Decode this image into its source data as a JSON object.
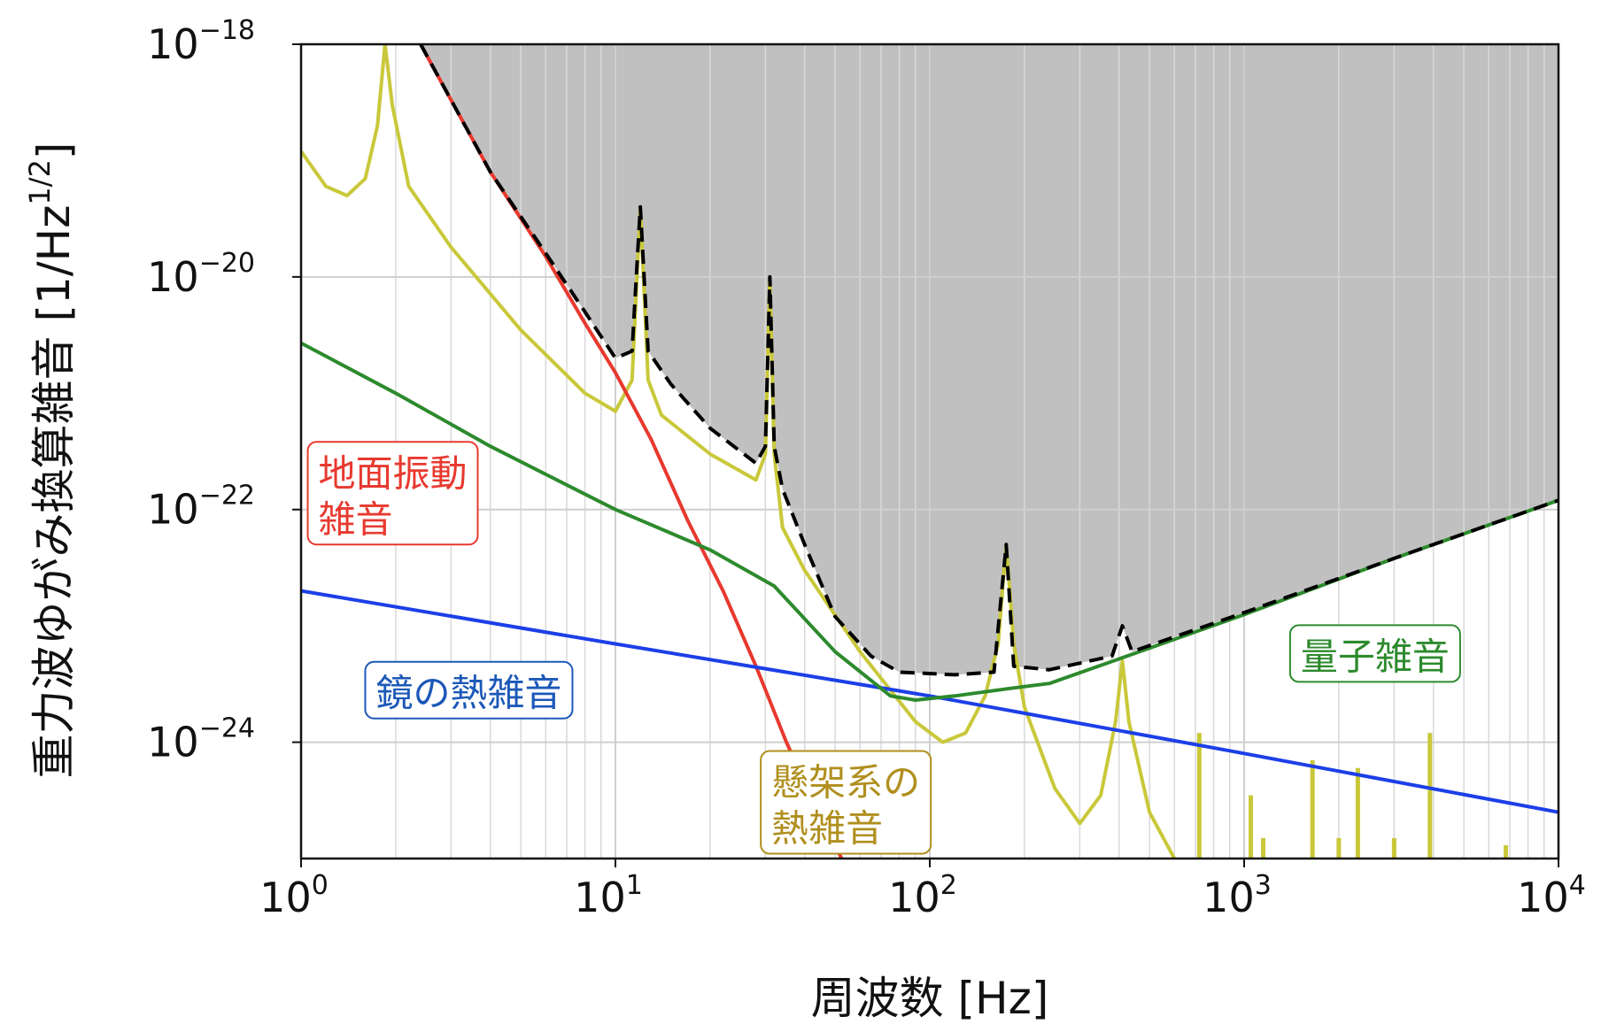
{
  "chart_data": {
    "type": "line",
    "title": "",
    "xlabel": "周波数 [Hz]",
    "ylabel": "重力波ゆがみ換算雑音 [1/Hz",
    "ylabel_sup": "1/2",
    "ylabel_tail": "]",
    "x_scale": "log",
    "y_scale": "log",
    "xlim": [
      1,
      10000
    ],
    "ylim": [
      1e-25,
      1e-18
    ],
    "grid": true,
    "x_ticks": [
      {
        "value": 1,
        "base": "10",
        "exp": "0"
      },
      {
        "value": 10,
        "base": "10",
        "exp": "1"
      },
      {
        "value": 100,
        "base": "10",
        "exp": "2"
      },
      {
        "value": 1000,
        "base": "10",
        "exp": "3"
      },
      {
        "value": 10000,
        "base": "10",
        "exp": "4"
      }
    ],
    "y_ticks": [
      {
        "value": 1e-18,
        "base": "10",
        "exp": "−18"
      },
      {
        "value": 1e-20,
        "base": "10",
        "exp": "−20"
      },
      {
        "value": 1e-22,
        "base": "10",
        "exp": "−22"
      },
      {
        "value": 1e-24,
        "base": "10",
        "exp": "−24"
      }
    ],
    "series": [
      {
        "key": "seismic",
        "name": "地面振動雑音",
        "color": "#e8392f",
        "style": "solid",
        "points": [
          [
            2.4,
            1e-18
          ],
          [
            4,
            8e-20
          ],
          [
            6,
            1.5e-20
          ],
          [
            8,
            4e-21
          ],
          [
            10,
            1.5e-21
          ],
          [
            13,
            4e-22
          ],
          [
            17,
            8e-23
          ],
          [
            22,
            2e-23
          ],
          [
            28,
            4.5e-24
          ],
          [
            35,
            1e-24
          ],
          [
            45,
            2.2e-25
          ],
          [
            60,
            5e-26
          ]
        ]
      },
      {
        "key": "mirror_thermal",
        "name": "鏡の熱雑音",
        "color": "#1c3fe8",
        "style": "solid",
        "points": [
          [
            1,
            2e-23
          ],
          [
            10,
            7e-24
          ],
          [
            100,
            2.5e-24
          ],
          [
            1000,
            8e-25
          ],
          [
            10000,
            2.5e-25
          ]
        ]
      },
      {
        "key": "quantum",
        "name": "量子雑音",
        "color": "#2d8a2d",
        "style": "solid",
        "points": [
          [
            1,
            2.7e-21
          ],
          [
            2,
            1e-21
          ],
          [
            4,
            3.5e-22
          ],
          [
            10,
            1e-22
          ],
          [
            20,
            4.5e-23
          ],
          [
            32,
            2.2e-23
          ],
          [
            50,
            6e-24
          ],
          [
            75,
            2.5e-24
          ],
          [
            90,
            2.3e-24
          ],
          [
            120,
            2.5e-24
          ],
          [
            180,
            2.9e-24
          ],
          [
            240,
            3.2e-24
          ],
          [
            400,
            5.2e-24
          ],
          [
            1000,
            1.25e-23
          ],
          [
            3000,
            3.8e-23
          ],
          [
            10000,
            1.2e-22
          ]
        ]
      },
      {
        "key": "suspension_thermal",
        "name": "懸架系の熱雑音",
        "color": "#c9c83a",
        "style": "solid",
        "points": [
          [
            1,
            1.2e-19
          ],
          [
            1.2,
            6e-20
          ],
          [
            1.4,
            5e-20
          ],
          [
            1.6,
            7e-20
          ],
          [
            1.75,
            2e-19
          ],
          [
            1.85,
            1e-18
          ],
          [
            1.95,
            3e-19
          ],
          [
            2.2,
            6e-20
          ],
          [
            3,
            1.8e-20
          ],
          [
            5,
            3.5e-21
          ],
          [
            8,
            1e-21
          ],
          [
            10,
            7e-22
          ],
          [
            11.3,
            1.3e-21
          ],
          [
            12,
            4e-20
          ],
          [
            12.7,
            1.3e-21
          ],
          [
            14,
            6.5e-22
          ],
          [
            20,
            3e-22
          ],
          [
            28,
            1.8e-22
          ],
          [
            30,
            3e-22
          ],
          [
            31,
            1e-20
          ],
          [
            32,
            3e-22
          ],
          [
            34,
            7e-23
          ],
          [
            40,
            3e-23
          ],
          [
            60,
            6e-24
          ],
          [
            90,
            1.5e-24
          ],
          [
            110,
            1e-24
          ],
          [
            130,
            1.2e-24
          ],
          [
            150,
            2.5e-24
          ],
          [
            165,
            7e-24
          ],
          [
            175,
            5e-23
          ],
          [
            185,
            7e-24
          ],
          [
            200,
            2e-24
          ],
          [
            250,
            4e-25
          ],
          [
            300,
            2e-25
          ],
          [
            350,
            3.5e-25
          ],
          [
            390,
            1.5e-24
          ],
          [
            410,
            5e-24
          ],
          [
            430,
            1.5e-24
          ],
          [
            500,
            2.5e-25
          ],
          [
            600,
            1e-25
          ]
        ]
      },
      {
        "key": "total",
        "name": "",
        "color": "#000000",
        "style": "dashed",
        "points": [
          [
            2.4,
            1e-18
          ],
          [
            4,
            8e-20
          ],
          [
            6,
            1.6e-20
          ],
          [
            8,
            5e-21
          ],
          [
            10,
            2e-21
          ],
          [
            11.3,
            2.3e-21
          ],
          [
            12,
            4e-20
          ],
          [
            12.7,
            2.3e-21
          ],
          [
            15,
            1.2e-21
          ],
          [
            20,
            5e-22
          ],
          [
            28,
            2.5e-22
          ],
          [
            30,
            3.5e-22
          ],
          [
            31,
            1e-20
          ],
          [
            32,
            3.5e-22
          ],
          [
            34,
            1.5e-22
          ],
          [
            40,
            5e-23
          ],
          [
            50,
            1.2e-23
          ],
          [
            65,
            5.5e-24
          ],
          [
            80,
            4e-24
          ],
          [
            120,
            3.8e-24
          ],
          [
            160,
            4e-24
          ],
          [
            175,
            5e-23
          ],
          [
            185,
            4.5e-24
          ],
          [
            240,
            4.2e-24
          ],
          [
            380,
            5.5e-24
          ],
          [
            410,
            1e-23
          ],
          [
            440,
            6e-24
          ],
          [
            1000,
            1.3e-23
          ],
          [
            3000,
            3.8e-23
          ],
          [
            10000,
            1.2e-22
          ]
        ]
      }
    ],
    "spikes": {
      "color": "#c9c83a",
      "items": [
        [
          720,
          1.2e-24
        ],
        [
          1050,
          3.5e-25
        ],
        [
          1150,
          1.5e-25
        ],
        [
          1650,
          7e-25
        ],
        [
          2000,
          1.5e-25
        ],
        [
          2300,
          6e-25
        ],
        [
          3000,
          1.5e-25
        ],
        [
          3900,
          1.2e-24
        ],
        [
          6800,
          1.3e-25
        ]
      ]
    },
    "fill_above": {
      "series": "total",
      "color": "#c0c0c0"
    },
    "annotations": [
      {
        "key": "seismic",
        "lines": [
          "地面振動",
          "雑音"
        ],
        "color": "#e8392f"
      },
      {
        "key": "mirror_thermal",
        "lines": [
          "鏡の熱雑音"
        ],
        "color": "#1c58b8"
      },
      {
        "key": "quantum",
        "lines": [
          "量子雑音"
        ],
        "color": "#2d8a2d"
      },
      {
        "key": "suspension_thermal",
        "lines": [
          "懸架系の",
          "熱雑音"
        ],
        "color": "#b08f1e"
      }
    ]
  }
}
